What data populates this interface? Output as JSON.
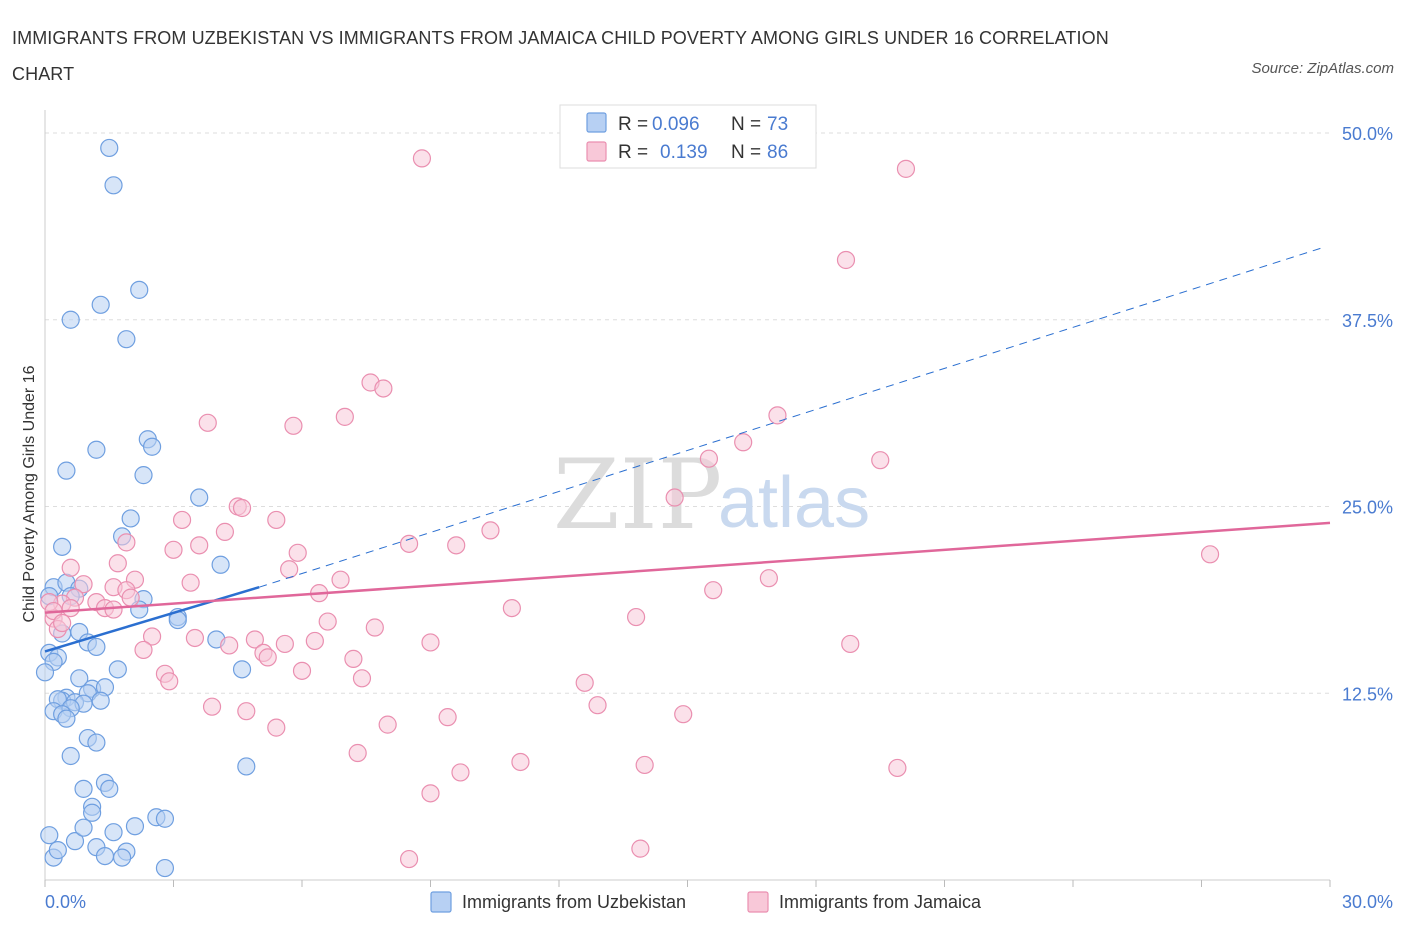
{
  "title": "IMMIGRANTS FROM UZBEKISTAN VS IMMIGRANTS FROM JAMAICA CHILD POVERTY AMONG GIRLS UNDER 16 CORRELATION CHART",
  "source": "Source: ZipAtlas.com",
  "watermark": {
    "zip": "ZIP",
    "atlas": "atlas"
  },
  "legend": {
    "r_label": "R =",
    "n_label": "N =",
    "uzbekistan": {
      "r": "0.096",
      "n": "73"
    },
    "jamaica": {
      "r": "0.139",
      "n": "86"
    }
  },
  "colors": {
    "uzbekistan_fill": "#b7d0f3",
    "uzbekistan_stroke": "#6f9fe0",
    "uzbekistan_line": "#2b6fd0",
    "jamaica_fill": "#f8c8d8",
    "jamaica_stroke": "#ea8fb0",
    "jamaica_line": "#e0679a",
    "grid": "#dddddd",
    "tick_text": "#4a7bd0"
  },
  "chart_data": {
    "type": "scatter",
    "xlabel": "",
    "ylabel": "Child Poverty Among Girls Under 16",
    "xlim": [
      0,
      30
    ],
    "ylim": [
      0,
      50
    ],
    "x_tick_labels": [
      "0.0%",
      "30.0%"
    ],
    "y_ticks": [
      12.5,
      25,
      37.5,
      50
    ],
    "y_tick_labels": [
      "12.5%",
      "25.0%",
      "37.5%",
      "50.0%"
    ],
    "grid": true,
    "legend_position": "top-center",
    "series": [
      {
        "name": "Immigrants from Uzbekistan",
        "points": [
          [
            1.5,
            49
          ],
          [
            1.6,
            46.5
          ],
          [
            2.2,
            39.5
          ],
          [
            1.3,
            38.5
          ],
          [
            0.6,
            37.5
          ],
          [
            1.9,
            36.2
          ],
          [
            2.4,
            29.5
          ],
          [
            2.5,
            29
          ],
          [
            1.2,
            28.8
          ],
          [
            0.5,
            27.4
          ],
          [
            2.3,
            27.1
          ],
          [
            3.6,
            25.6
          ],
          [
            2.0,
            24.2
          ],
          [
            1.8,
            23
          ],
          [
            0.4,
            22.3
          ],
          [
            4.1,
            21.1
          ],
          [
            0.2,
            19.6
          ],
          [
            0.5,
            19.9
          ],
          [
            0.8,
            19.5
          ],
          [
            0.6,
            19
          ],
          [
            0.1,
            19
          ],
          [
            2.3,
            18.8
          ],
          [
            2.2,
            18.1
          ],
          [
            3.1,
            17.6
          ],
          [
            3.1,
            17.4
          ],
          [
            0.4,
            16.5
          ],
          [
            0.8,
            16.6
          ],
          [
            1.0,
            15.9
          ],
          [
            1.2,
            15.6
          ],
          [
            4.0,
            16.1
          ],
          [
            0.1,
            15.2
          ],
          [
            0.3,
            14.9
          ],
          [
            0.2,
            14.6
          ],
          [
            1.7,
            14.1
          ],
          [
            4.6,
            14.1
          ],
          [
            0.0,
            13.9
          ],
          [
            0.8,
            13.5
          ],
          [
            1.1,
            12.8
          ],
          [
            1.4,
            12.9
          ],
          [
            1.0,
            12.5
          ],
          [
            0.5,
            12.2
          ],
          [
            0.4,
            12.0
          ],
          [
            0.3,
            12.1
          ],
          [
            0.7,
            11.9
          ],
          [
            1.3,
            12.0
          ],
          [
            0.9,
            11.8
          ],
          [
            0.6,
            11.5
          ],
          [
            0.2,
            11.3
          ],
          [
            0.4,
            11.1
          ],
          [
            0.5,
            10.8
          ],
          [
            1.0,
            9.5
          ],
          [
            1.2,
            9.2
          ],
          [
            0.6,
            8.3
          ],
          [
            4.7,
            7.6
          ],
          [
            1.4,
            6.5
          ],
          [
            1.5,
            6.1
          ],
          [
            0.9,
            6.1
          ],
          [
            1.1,
            4.9
          ],
          [
            1.1,
            4.5
          ],
          [
            2.6,
            4.2
          ],
          [
            2.8,
            4.1
          ],
          [
            1.2,
            2.2
          ],
          [
            1.9,
            1.9
          ],
          [
            1.4,
            1.6
          ],
          [
            1.8,
            1.5
          ],
          [
            2.8,
            0.8
          ],
          [
            0.2,
            1.5
          ],
          [
            0.3,
            2.0
          ],
          [
            0.7,
            2.6
          ],
          [
            0.1,
            3.0
          ],
          [
            1.6,
            3.2
          ],
          [
            0.9,
            3.5
          ],
          [
            2.1,
            3.6
          ]
        ]
      },
      {
        "name": "Immigrants from Jamaica",
        "points": [
          [
            8.8,
            48.3
          ],
          [
            20.1,
            47.6
          ],
          [
            18.7,
            41.5
          ],
          [
            7.6,
            33.3
          ],
          [
            7.9,
            32.9
          ],
          [
            7.0,
            31.0
          ],
          [
            3.8,
            30.6
          ],
          [
            5.8,
            30.4
          ],
          [
            17.1,
            31.1
          ],
          [
            16.3,
            29.3
          ],
          [
            19.5,
            28.1
          ],
          [
            15.5,
            28.2
          ],
          [
            14.7,
            25.6
          ],
          [
            4.5,
            25.0
          ],
          [
            4.6,
            24.9
          ],
          [
            5.4,
            24.1
          ],
          [
            3.2,
            24.1
          ],
          [
            4.2,
            23.3
          ],
          [
            10.4,
            23.4
          ],
          [
            8.5,
            22.5
          ],
          [
            9.6,
            22.4
          ],
          [
            3.0,
            22.1
          ],
          [
            3.6,
            22.4
          ],
          [
            1.9,
            22.6
          ],
          [
            5.9,
            21.9
          ],
          [
            27.2,
            21.8
          ],
          [
            1.7,
            21.2
          ],
          [
            0.6,
            20.9
          ],
          [
            5.7,
            20.8
          ],
          [
            2.1,
            20.1
          ],
          [
            3.4,
            19.9
          ],
          [
            6.9,
            20.1
          ],
          [
            16.9,
            20.2
          ],
          [
            0.9,
            19.8
          ],
          [
            1.6,
            19.6
          ],
          [
            1.9,
            19.4
          ],
          [
            15.6,
            19.4
          ],
          [
            6.4,
            19.2
          ],
          [
            0.7,
            18.9
          ],
          [
            2.0,
            18.9
          ],
          [
            1.2,
            18.6
          ],
          [
            0.4,
            18.5
          ],
          [
            1.4,
            18.2
          ],
          [
            1.6,
            18.1
          ],
          [
            10.9,
            18.2
          ],
          [
            13.8,
            17.6
          ],
          [
            6.6,
            17.3
          ],
          [
            7.7,
            16.9
          ],
          [
            2.5,
            16.3
          ],
          [
            3.5,
            16.2
          ],
          [
            4.9,
            16.1
          ],
          [
            6.3,
            16.0
          ],
          [
            5.6,
            15.8
          ],
          [
            9.0,
            15.9
          ],
          [
            18.8,
            15.8
          ],
          [
            4.3,
            15.7
          ],
          [
            2.3,
            15.4
          ],
          [
            5.1,
            15.2
          ],
          [
            5.2,
            14.9
          ],
          [
            7.2,
            14.8
          ],
          [
            6.0,
            14.0
          ],
          [
            2.8,
            13.8
          ],
          [
            7.4,
            13.5
          ],
          [
            2.9,
            13.3
          ],
          [
            12.6,
            13.2
          ],
          [
            0.2,
            17.5
          ],
          [
            0.3,
            16.8
          ],
          [
            0.6,
            18.2
          ],
          [
            3.9,
            11.6
          ],
          [
            4.7,
            11.3
          ],
          [
            12.9,
            11.7
          ],
          [
            8.0,
            10.4
          ],
          [
            5.4,
            10.2
          ],
          [
            9.4,
            10.9
          ],
          [
            14.9,
            11.1
          ],
          [
            7.3,
            8.5
          ],
          [
            11.1,
            7.9
          ],
          [
            14.0,
            7.7
          ],
          [
            19.9,
            7.5
          ],
          [
            9.7,
            7.2
          ],
          [
            9.0,
            5.8
          ],
          [
            13.9,
            2.1
          ],
          [
            8.5,
            1.4
          ],
          [
            0.1,
            18.6
          ],
          [
            0.2,
            18.0
          ],
          [
            0.4,
            17.2
          ]
        ]
      }
    ],
    "trendlines": [
      {
        "series": "Immigrants from Uzbekistan",
        "solid": [
          [
            0,
            15.3
          ],
          [
            5,
            19.6
          ]
        ],
        "dashed": [
          [
            5,
            19.6
          ],
          [
            29.8,
            42.3
          ]
        ]
      },
      {
        "series": "Immigrants from Jamaica",
        "solid": [
          [
            0,
            17.9
          ],
          [
            30,
            23.9
          ]
        ]
      }
    ]
  }
}
